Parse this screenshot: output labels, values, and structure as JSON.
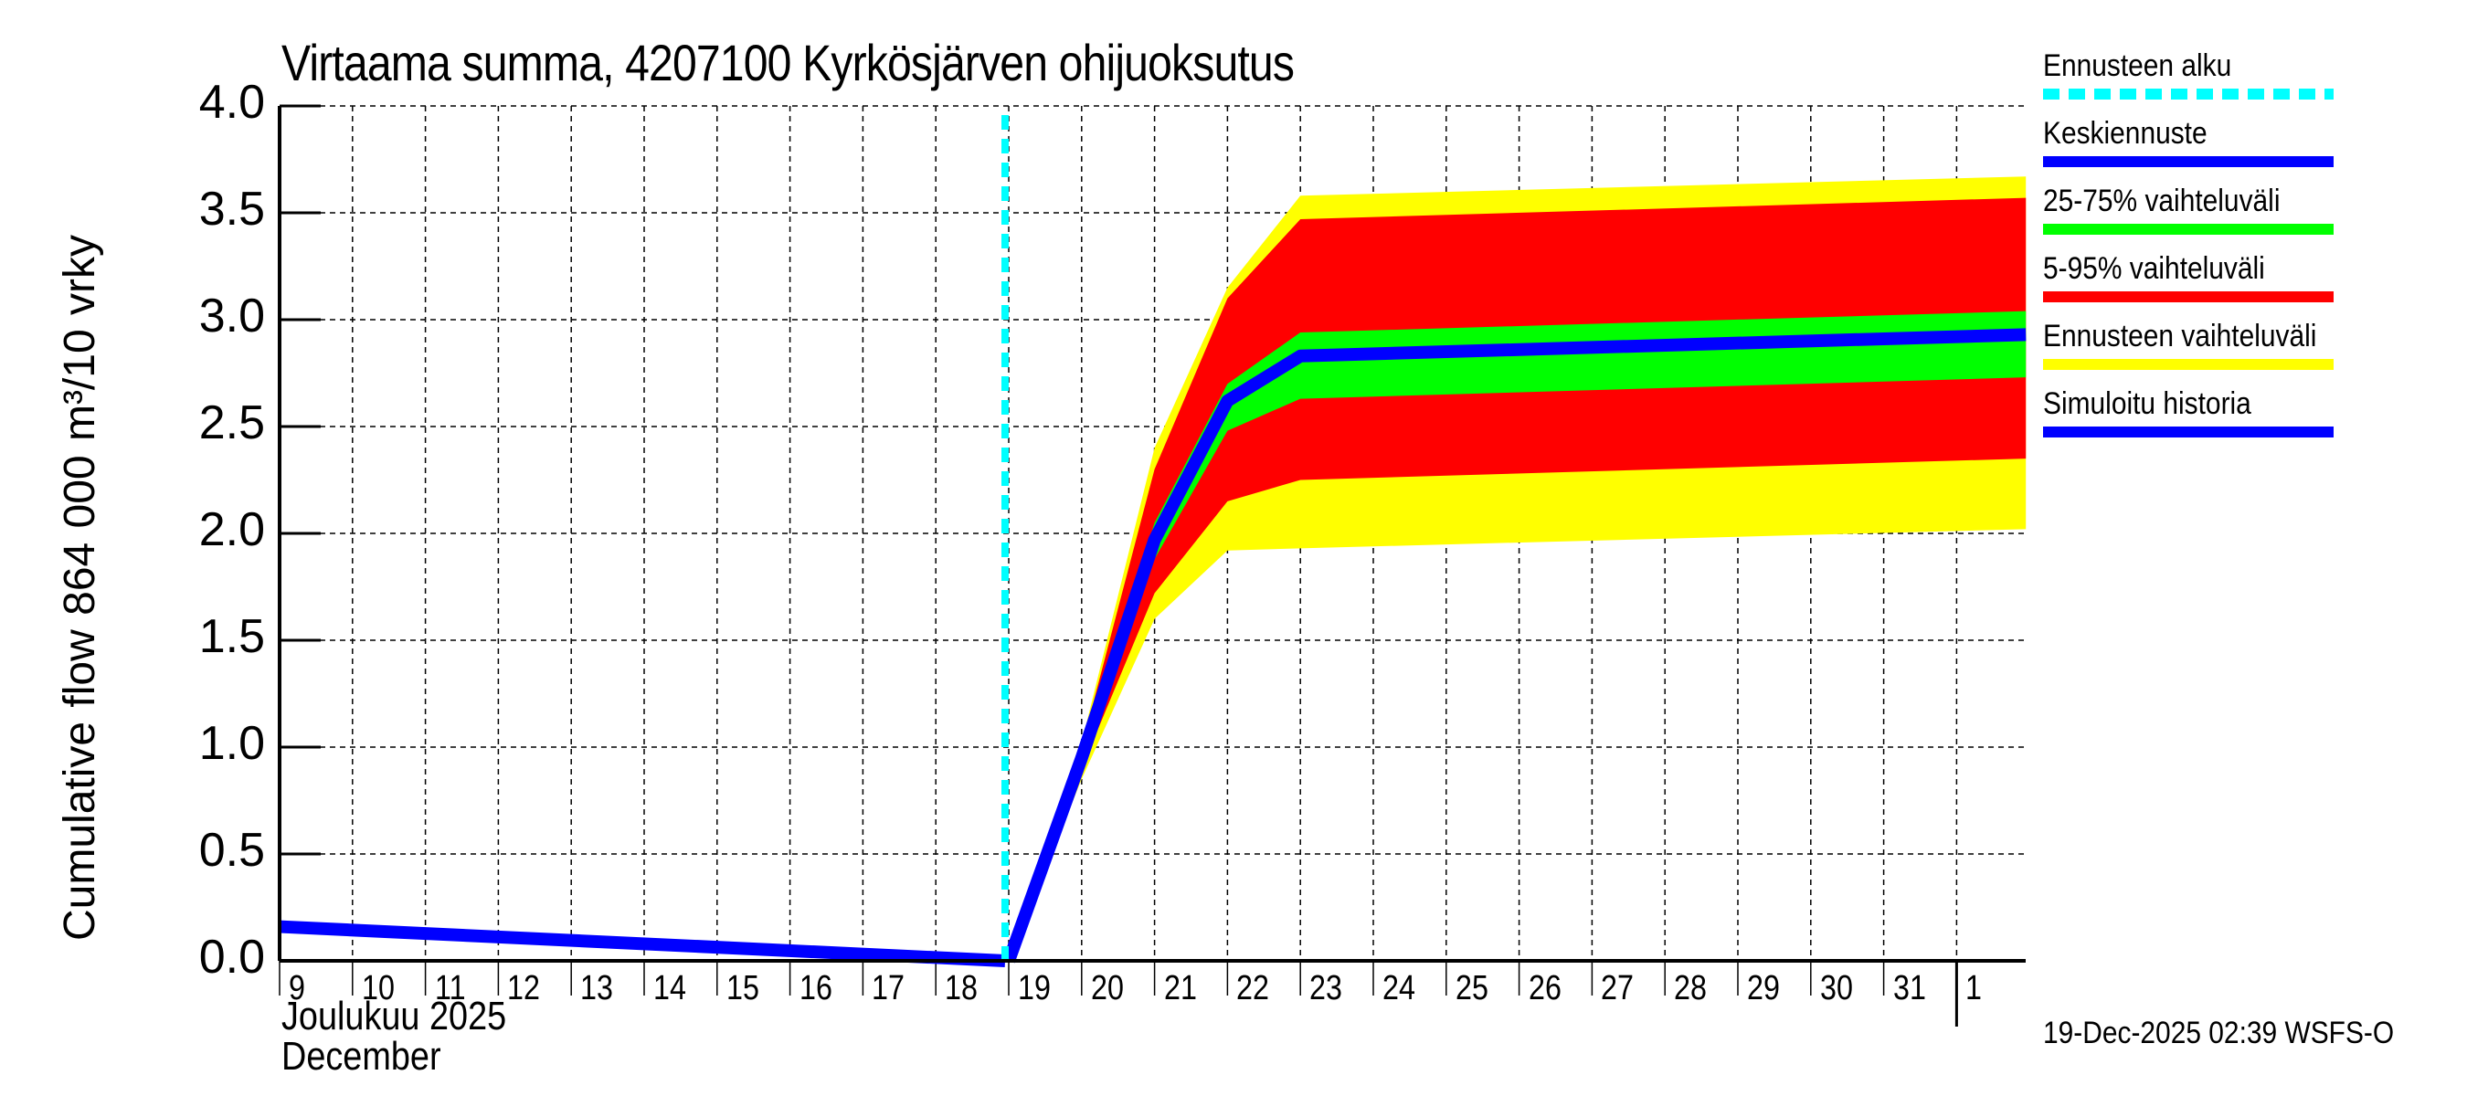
{
  "header": {
    "title": "Virtaama summa, 4207100 Kyrkösjärven ohijuoksutus"
  },
  "axes": {
    "ylabel": "Cumulative flow    864 000 m³/10 vrky",
    "yticks": [
      "0.0",
      "0.5",
      "1.0",
      "1.5",
      "2.0",
      "2.5",
      "3.0",
      "3.5",
      "4.0"
    ],
    "xticks": [
      "9",
      "10",
      "11",
      "12",
      "13",
      "14",
      "15",
      "16",
      "17",
      "18",
      "19",
      "20",
      "21",
      "22",
      "23",
      "24",
      "25",
      "26",
      "27",
      "28",
      "29",
      "30",
      "31",
      "1"
    ],
    "month_line1": "Joulukuu  2025",
    "month_line2": "December"
  },
  "legend": {
    "items": [
      {
        "label": "Ennusteen alku",
        "color": "#00ffff",
        "style": "dashed"
      },
      {
        "label": "Keskiennuste",
        "color": "#0000ff",
        "style": "solid"
      },
      {
        "label": "25-75% vaihteluväli",
        "color": "#00ff00",
        "style": "solid"
      },
      {
        "label": "5-95% vaihteluväli",
        "color": "#ff0000",
        "style": "solid"
      },
      {
        "label": "Ennusteen vaihteluväli",
        "color": "#ffff00",
        "style": "solid"
      },
      {
        "label": "Simuloitu historia",
        "color": "#0000ff",
        "style": "solid"
      }
    ]
  },
  "footer": {
    "timestamp": "19-Dec-2025 02:39 WSFS-O"
  },
  "chart_data": {
    "type": "area",
    "title": "Virtaama summa, 4207100 Kyrkösjärven ohijuoksutus",
    "xlabel": "Joulukuu 2025 / December",
    "ylabel": "Cumulative flow 864 000 m³/10 vrky",
    "ylim": [
      0,
      4.0
    ],
    "xlim_days": [
      0,
      23.95
    ],
    "x_note": "x = days since 9 Dec 2025 (23 = 1 Jan 2026)",
    "grid": true,
    "legend_position": "right",
    "forecast_start_x": 10,
    "series": [
      {
        "name": "Simuloitu historia",
        "color": "#0000ff",
        "x": [
          0,
          9.95
        ],
        "values": [
          0.16,
          0.0
        ]
      },
      {
        "name": "Keskiennuste",
        "color": "#0000ff",
        "x": [
          10,
          11,
          12,
          13,
          14,
          23.95
        ],
        "values": [
          0.0,
          0.95,
          1.97,
          2.62,
          2.83,
          2.93
        ]
      },
      {
        "name": "25-75% vaihteluväli",
        "color": "#00ff00",
        "x": [
          10,
          11,
          12,
          13,
          14,
          23.95
        ],
        "lower": [
          0.0,
          0.93,
          1.88,
          2.48,
          2.63,
          2.73
        ],
        "upper": [
          0.0,
          0.97,
          2.05,
          2.7,
          2.94,
          3.04
        ]
      },
      {
        "name": "5-95% vaihteluväli",
        "color": "#ff0000",
        "x": [
          10,
          11,
          12,
          13,
          14,
          23.95
        ],
        "lower": [
          0.0,
          0.9,
          1.72,
          2.15,
          2.25,
          2.35
        ],
        "upper": [
          0.0,
          1.0,
          2.3,
          3.1,
          3.47,
          3.57
        ]
      },
      {
        "name": "Ennusteen vaihteluväli",
        "color": "#ffff00",
        "x": [
          10,
          11,
          12,
          13,
          14,
          23.95
        ],
        "lower": [
          0.0,
          0.85,
          1.6,
          1.92,
          1.93,
          2.02
        ],
        "upper": [
          0.0,
          1.02,
          2.4,
          3.15,
          3.58,
          3.67
        ]
      }
    ]
  }
}
